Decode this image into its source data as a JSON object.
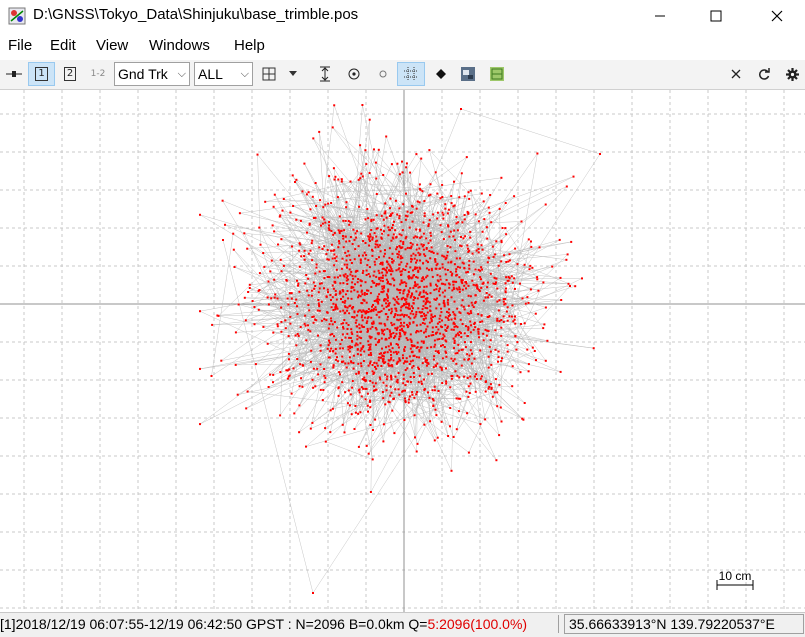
{
  "window": {
    "title": "D:\\GNSS\\Tokyo_Data\\Shinjuku\\base_trimble.pos",
    "minimize_label": "—",
    "maximize_label": "☐",
    "close_label": "✕"
  },
  "menu": [
    "File",
    "Edit",
    "View",
    "Windows",
    "Help"
  ],
  "toolbar": {
    "plot1_label": "1",
    "plot2_label": "2",
    "plot12_label": "1-2",
    "plot_type": "Gnd Trk",
    "quality": "ALL"
  },
  "plot": {
    "scale_label": "10 cm",
    "point_color": "#ff0000",
    "line_color": "#b8b8b8",
    "grid_color": "#c8c8c8",
    "point_count": 2096
  },
  "status": {
    "info": "[1]2018/12/19 06:07:55-12/19 06:42:50 GPST : N=2096 B=0.0km Q=",
    "quality": "5:2096(100.0%)",
    "position": "35.66633913°N  139.79220537°E"
  }
}
